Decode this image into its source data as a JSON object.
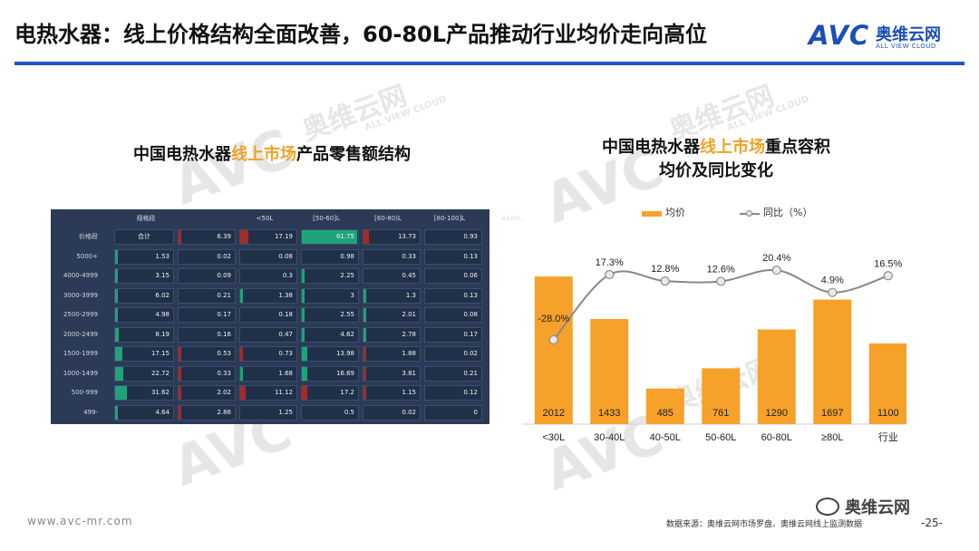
{
  "title": "电热水器：线上价格结构全面改善，60-80L产品推动行业均价走向高位",
  "logo": {
    "mark": "AVC",
    "cn": "奥维云网",
    "en": "ALL VIEW CLOUD"
  },
  "watermark": {
    "mark": "AVC",
    "cn": "奥维云网",
    "en": "ALL VIEW CLOUD"
  },
  "left_title": {
    "pre": "中国电热水器",
    "hl": "线上市场",
    "post": "产品零售额结构"
  },
  "right_title": {
    "pre": "中国电热水器",
    "hl": "线上市场",
    "post": "重点容积",
    "line2": "均价及同比变化"
  },
  "legend": {
    "bar": "均价",
    "line": "同比（%）"
  },
  "colors": {
    "accent": "#f0a227",
    "bar": "#f5a12a",
    "line": "#888888",
    "positive": "#1fa37a",
    "negative": "#a52a2a",
    "table_bg": "#2b3a56"
  },
  "table": {
    "corner": "规格段",
    "columns": [
      "<50L",
      "[50-60]L",
      "[60-80)L",
      "[80-100]L",
      "≥100L"
    ],
    "rows": [
      {
        "label": "价格段",
        "total": "合计",
        "values": [
          "6.39",
          "17.19",
          "61.75",
          "13.73",
          "0.93"
        ],
        "total_bar": 0,
        "bars": [
          0.04,
          0.14,
          0.95,
          0.1,
          0.0
        ],
        "bar_sign": [
          -1,
          -1,
          1,
          -1,
          0
        ]
      },
      {
        "label": "5000+",
        "total": "1.53",
        "values": [
          "0.02",
          "0.08",
          "0.98",
          "0.33",
          "0.13"
        ],
        "total_bar": 0.03,
        "bars": [
          0,
          0,
          0,
          0,
          0
        ],
        "bar_sign": [
          0,
          0,
          0,
          0,
          0
        ]
      },
      {
        "label": "4000-4999",
        "total": "3.15",
        "values": [
          "0.09",
          "0.3",
          "2.25",
          "0.45",
          "0.06"
        ],
        "total_bar": 0.03,
        "bars": [
          0,
          0,
          0.02,
          0,
          0
        ],
        "bar_sign": [
          0,
          0,
          1,
          0,
          0
        ]
      },
      {
        "label": "3000-3999",
        "total": "6.02",
        "values": [
          "0.21",
          "1.38",
          "3",
          "1.3",
          "0.13"
        ],
        "total_bar": 0.05,
        "bars": [
          0,
          0.02,
          0.02,
          0.02,
          0
        ],
        "bar_sign": [
          0,
          1,
          1,
          1,
          0
        ]
      },
      {
        "label": "2500-2999",
        "total": "4.98",
        "values": [
          "0.17",
          "0.18",
          "2.55",
          "2.01",
          "0.08"
        ],
        "total_bar": 0.04,
        "bars": [
          0,
          0,
          0.02,
          0.02,
          0
        ],
        "bar_sign": [
          0,
          0,
          1,
          1,
          0
        ]
      },
      {
        "label": "2000-2499",
        "total": "8.19",
        "values": [
          "0.16",
          "0.47",
          "4.62",
          "2.78",
          "0.17"
        ],
        "total_bar": 0.07,
        "bars": [
          0,
          0,
          0.04,
          0.02,
          0
        ],
        "bar_sign": [
          0,
          0,
          1,
          1,
          0
        ]
      },
      {
        "label": "1500-1999",
        "total": "17.15",
        "values": [
          "0.53",
          "0.73",
          "13.98",
          "1.88",
          "0.02"
        ],
        "total_bar": 0.12,
        "bars": [
          0.02,
          0.02,
          0.1,
          0.02,
          0
        ],
        "bar_sign": [
          -1,
          -1,
          1,
          -1,
          0
        ]
      },
      {
        "label": "1000-1499",
        "total": "22.72",
        "values": [
          "0.33",
          "1.68",
          "16.69",
          "3.81",
          "0.21"
        ],
        "total_bar": 0.14,
        "bars": [
          0.02,
          0.02,
          0.1,
          0.02,
          0
        ],
        "bar_sign": [
          -1,
          1,
          1,
          -1,
          0
        ]
      },
      {
        "label": "500-999",
        "total": "31.62",
        "values": [
          "2.02",
          "11.12",
          "17.2",
          "1.15",
          "0.12"
        ],
        "total_bar": 0.2,
        "bars": [
          0.02,
          0.1,
          0.1,
          0.02,
          0
        ],
        "bar_sign": [
          -1,
          -1,
          -1,
          -1,
          0
        ]
      },
      {
        "label": "499-",
        "total": "4.64",
        "values": [
          "2.86",
          "1.25",
          "0.5",
          "0.02",
          "0"
        ],
        "total_bar": 0.03,
        "bars": [
          0.02,
          0,
          0,
          0,
          0
        ],
        "bar_sign": [
          -1,
          0,
          0,
          0,
          0
        ]
      }
    ]
  },
  "chart_data": {
    "type": "bar",
    "categories": [
      "<30L",
      "30-40L",
      "40-50L",
      "50-60L",
      "60-80L",
      "≥80L",
      "行业"
    ],
    "series": [
      {
        "name": "均价",
        "type": "bar",
        "values": [
          2012,
          1433,
          485,
          761,
          1290,
          1697,
          1100
        ]
      },
      {
        "name": "同比（%）",
        "type": "line",
        "values": [
          -28.0,
          17.3,
          12.8,
          12.6,
          20.4,
          4.9,
          16.5
        ],
        "labels": [
          "-28.0%",
          "17.3%",
          "12.8%",
          "12.6%",
          "20.4%",
          "4.9%",
          "16.5%"
        ]
      }
    ],
    "title": "中国电热水器线上市场重点容积均价及同比变化",
    "ylim": [
      0,
      2050
    ],
    "y2lim": [
      -40,
      28
    ],
    "legend": "top"
  },
  "footer": {
    "url": "www.avc-mr.com",
    "source": "数据来源：奥维云网市场罗盘、奥维云网线上监测数据",
    "page": "-25-",
    "wechat": "奥维云网"
  }
}
